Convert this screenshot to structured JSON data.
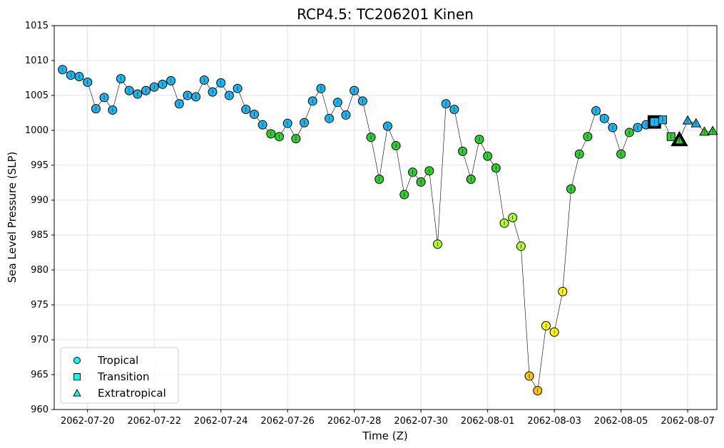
{
  "chart_data": {
    "type": "scatter",
    "title": "RCP4.5: TC206201 Kinen",
    "xlabel": "Time (Z)",
    "ylabel": "Sea Level Pressure (SLP)",
    "ylim": [
      960,
      1015
    ],
    "xlim": [
      "2062-07-19 00:00",
      "2062-08-07 21:00"
    ],
    "x_ticks": [
      "2062-07-20",
      "2062-07-22",
      "2062-07-24",
      "2062-07-26",
      "2062-07-28",
      "2062-07-30",
      "2062-08-01",
      "2062-08-03",
      "2062-08-05",
      "2062-08-07"
    ],
    "y_ticks": [
      960,
      965,
      970,
      975,
      980,
      985,
      990,
      995,
      1000,
      1005,
      1010,
      1015
    ],
    "grid": true,
    "legend_position": "lower-left",
    "legend": [
      {
        "label": "Tropical",
        "marker": "circle"
      },
      {
        "label": "Transition",
        "marker": "square"
      },
      {
        "label": "Extratropical",
        "marker": "triangle"
      }
    ],
    "colors": {
      "legend_fill": "#00ffff",
      "ts": "#1fb4ec",
      "td": "#32cd32",
      "cat1": "#adff2f",
      "cat2": "#ffff00",
      "cat3": "#f5c518",
      "line": "#000000"
    },
    "series": [
      {
        "values": [
          {
            "x": "2062-07-19 06:00",
            "y": 1008.7,
            "type": "Tropical",
            "color": "ts"
          },
          {
            "x": "2062-07-19 12:00",
            "y": 1007.9,
            "type": "Tropical",
            "color": "ts"
          },
          {
            "x": "2062-07-19 18:00",
            "y": 1007.7,
            "type": "Tropical",
            "color": "ts"
          },
          {
            "x": "2062-07-20 00:00",
            "y": 1006.9,
            "type": "Tropical",
            "color": "ts"
          },
          {
            "x": "2062-07-20 06:00",
            "y": 1003.1,
            "type": "Tropical",
            "color": "ts"
          },
          {
            "x": "2062-07-20 12:00",
            "y": 1004.7,
            "type": "Tropical",
            "color": "ts"
          },
          {
            "x": "2062-07-20 18:00",
            "y": 1002.9,
            "type": "Tropical",
            "color": "ts"
          },
          {
            "x": "2062-07-21 00:00",
            "y": 1007.4,
            "type": "Tropical",
            "color": "ts"
          },
          {
            "x": "2062-07-21 06:00",
            "y": 1005.7,
            "type": "Tropical",
            "color": "ts"
          },
          {
            "x": "2062-07-21 12:00",
            "y": 1005.2,
            "type": "Tropical",
            "color": "ts"
          },
          {
            "x": "2062-07-21 18:00",
            "y": 1005.7,
            "type": "Tropical",
            "color": "ts"
          },
          {
            "x": "2062-07-22 00:00",
            "y": 1006.2,
            "type": "Tropical",
            "color": "ts"
          },
          {
            "x": "2062-07-22 06:00",
            "y": 1006.6,
            "type": "Tropical",
            "color": "ts"
          },
          {
            "x": "2062-07-22 12:00",
            "y": 1007.1,
            "type": "Tropical",
            "color": "ts"
          },
          {
            "x": "2062-07-22 18:00",
            "y": 1003.8,
            "type": "Tropical",
            "color": "ts"
          },
          {
            "x": "2062-07-23 00:00",
            "y": 1005.0,
            "type": "Tropical",
            "color": "ts"
          },
          {
            "x": "2062-07-23 06:00",
            "y": 1004.8,
            "type": "Tropical",
            "color": "ts"
          },
          {
            "x": "2062-07-23 12:00",
            "y": 1007.2,
            "type": "Tropical",
            "color": "ts"
          },
          {
            "x": "2062-07-23 18:00",
            "y": 1005.5,
            "type": "Tropical",
            "color": "ts"
          },
          {
            "x": "2062-07-24 00:00",
            "y": 1006.8,
            "type": "Tropical",
            "color": "ts"
          },
          {
            "x": "2062-07-24 06:00",
            "y": 1005.0,
            "type": "Tropical",
            "color": "ts"
          },
          {
            "x": "2062-07-24 12:00",
            "y": 1006.0,
            "type": "Tropical",
            "color": "ts"
          },
          {
            "x": "2062-07-24 18:00",
            "y": 1003.0,
            "type": "Tropical",
            "color": "ts"
          },
          {
            "x": "2062-07-25 00:00",
            "y": 1002.3,
            "type": "Tropical",
            "color": "ts"
          },
          {
            "x": "2062-07-25 06:00",
            "y": 1000.8,
            "type": "Tropical",
            "color": "ts"
          },
          {
            "x": "2062-07-25 12:00",
            "y": 999.5,
            "type": "Tropical",
            "color": "td"
          },
          {
            "x": "2062-07-25 18:00",
            "y": 999.1,
            "type": "Tropical",
            "color": "td"
          },
          {
            "x": "2062-07-26 00:00",
            "y": 1001.0,
            "type": "Tropical",
            "color": "ts"
          },
          {
            "x": "2062-07-26 06:00",
            "y": 998.8,
            "type": "Tropical",
            "color": "td"
          },
          {
            "x": "2062-07-26 12:00",
            "y": 1001.1,
            "type": "Tropical",
            "color": "ts"
          },
          {
            "x": "2062-07-26 18:00",
            "y": 1004.2,
            "type": "Tropical",
            "color": "ts"
          },
          {
            "x": "2062-07-27 00:00",
            "y": 1006.0,
            "type": "Tropical",
            "color": "ts"
          },
          {
            "x": "2062-07-27 06:00",
            "y": 1001.7,
            "type": "Tropical",
            "color": "ts"
          },
          {
            "x": "2062-07-27 12:00",
            "y": 1004.0,
            "type": "Tropical",
            "color": "ts"
          },
          {
            "x": "2062-07-27 18:00",
            "y": 1002.2,
            "type": "Tropical",
            "color": "ts"
          },
          {
            "x": "2062-07-28 00:00",
            "y": 1005.7,
            "type": "Tropical",
            "color": "ts"
          },
          {
            "x": "2062-07-28 06:00",
            "y": 1004.2,
            "type": "Tropical",
            "color": "ts"
          },
          {
            "x": "2062-07-28 12:00",
            "y": 999.0,
            "type": "Tropical",
            "color": "td"
          },
          {
            "x": "2062-07-28 18:00",
            "y": 993.0,
            "type": "Tropical",
            "color": "td"
          },
          {
            "x": "2062-07-29 00:00",
            "y": 1000.6,
            "type": "Tropical",
            "color": "ts"
          },
          {
            "x": "2062-07-29 06:00",
            "y": 997.8,
            "type": "Tropical",
            "color": "td"
          },
          {
            "x": "2062-07-29 12:00",
            "y": 990.8,
            "type": "Tropical",
            "color": "td"
          },
          {
            "x": "2062-07-29 18:00",
            "y": 994.0,
            "type": "Tropical",
            "color": "td"
          },
          {
            "x": "2062-07-30 00:00",
            "y": 992.6,
            "type": "Tropical",
            "color": "td"
          },
          {
            "x": "2062-07-30 06:00",
            "y": 994.2,
            "type": "Tropical",
            "color": "td"
          },
          {
            "x": "2062-07-30 12:00",
            "y": 983.7,
            "type": "Tropical",
            "color": "cat1"
          },
          {
            "x": "2062-07-30 18:00",
            "y": 1003.8,
            "type": "Tropical",
            "color": "ts"
          },
          {
            "x": "2062-07-31 00:00",
            "y": 1003.0,
            "type": "Tropical",
            "color": "ts"
          },
          {
            "x": "2062-07-31 06:00",
            "y": 997.0,
            "type": "Tropical",
            "color": "td"
          },
          {
            "x": "2062-07-31 12:00",
            "y": 993.0,
            "type": "Tropical",
            "color": "td"
          },
          {
            "x": "2062-07-31 18:00",
            "y": 998.7,
            "type": "Tropical",
            "color": "td"
          },
          {
            "x": "2062-08-01 00:00",
            "y": 996.3,
            "type": "Tropical",
            "color": "td"
          },
          {
            "x": "2062-08-01 06:00",
            "y": 994.6,
            "type": "Tropical",
            "color": "td"
          },
          {
            "x": "2062-08-01 12:00",
            "y": 986.7,
            "type": "Tropical",
            "color": "cat1"
          },
          {
            "x": "2062-08-01 18:00",
            "y": 987.5,
            "type": "Tropical",
            "color": "cat1"
          },
          {
            "x": "2062-08-02 00:00",
            "y": 983.4,
            "type": "Tropical",
            "color": "cat1"
          },
          {
            "x": "2062-08-02 06:00",
            "y": 964.8,
            "type": "Tropical",
            "color": "cat3"
          },
          {
            "x": "2062-08-02 12:00",
            "y": 962.7,
            "type": "Tropical",
            "color": "cat3"
          },
          {
            "x": "2062-08-02 18:00",
            "y": 972.0,
            "type": "Tropical",
            "color": "cat2"
          },
          {
            "x": "2062-08-03 00:00",
            "y": 971.1,
            "type": "Tropical",
            "color": "cat2"
          },
          {
            "x": "2062-08-03 06:00",
            "y": 976.9,
            "type": "Tropical",
            "color": "cat2"
          },
          {
            "x": "2062-08-03 12:00",
            "y": 991.6,
            "type": "Tropical",
            "color": "td"
          },
          {
            "x": "2062-08-03 18:00",
            "y": 996.6,
            "type": "Tropical",
            "color": "td"
          },
          {
            "x": "2062-08-04 00:00",
            "y": 999.1,
            "type": "Tropical",
            "color": "td"
          },
          {
            "x": "2062-08-04 06:00",
            "y": 1002.8,
            "type": "Tropical",
            "color": "ts"
          },
          {
            "x": "2062-08-04 12:00",
            "y": 1001.7,
            "type": "Tropical",
            "color": "ts"
          },
          {
            "x": "2062-08-04 18:00",
            "y": 1000.4,
            "type": "Tropical",
            "color": "ts"
          },
          {
            "x": "2062-08-05 00:00",
            "y": 996.6,
            "type": "Tropical",
            "color": "td"
          },
          {
            "x": "2062-08-05 06:00",
            "y": 999.7,
            "type": "Tropical",
            "color": "td"
          },
          {
            "x": "2062-08-05 12:00",
            "y": 1000.4,
            "type": "Tropical",
            "color": "ts"
          },
          {
            "x": "2062-08-05 18:00",
            "y": 1000.8,
            "type": "Tropical",
            "color": "ts"
          },
          {
            "x": "2062-08-06 00:00",
            "y": 1001.2,
            "type": "Transition",
            "color": "ts",
            "highlight": true
          },
          {
            "x": "2062-08-06 06:00",
            "y": 1001.5,
            "type": "Transition",
            "color": "ts"
          },
          {
            "x": "2062-08-06 12:00",
            "y": 999.1,
            "type": "Transition",
            "color": "td"
          },
          {
            "x": "2062-08-06 18:00",
            "y": 998.6,
            "type": "Extratropical",
            "color": "td",
            "highlight": true
          },
          {
            "x": "2062-08-07 00:00",
            "y": 1001.4,
            "type": "Extratropical",
            "color": "ts"
          },
          {
            "x": "2062-08-07 06:00",
            "y": 1001.0,
            "type": "Extratropical",
            "color": "ts"
          },
          {
            "x": "2062-08-07 12:00",
            "y": 999.8,
            "type": "Extratropical",
            "color": "td"
          },
          {
            "x": "2062-08-07 18:00",
            "y": 999.9,
            "type": "Extratropical",
            "color": "td"
          }
        ]
      }
    ]
  }
}
